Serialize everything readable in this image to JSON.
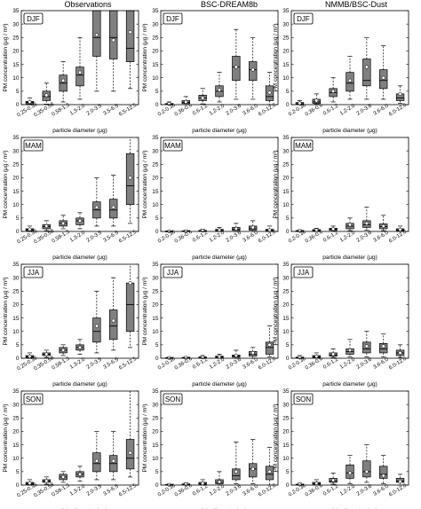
{
  "column_titles": [
    "Observations",
    "BSC-DREAM8b",
    "NMMB/BSC-Dust"
  ],
  "row_seasons": [
    "DJF",
    "MAM",
    "JJA",
    "SON"
  ],
  "xlabel": "particle diameter (μg)",
  "ylabel": "PM concentration (μg / m³)",
  "colors": {
    "box_fill": "#808080",
    "box_stroke": "#000000",
    "whisker": "#000000",
    "mean_marker": "#ffffff"
  },
  "chart_data": [
    {
      "type": "box",
      "title": "Observations",
      "season": "DJF",
      "ylim": [
        0,
        35
      ],
      "yticks": [
        0,
        5,
        10,
        15,
        20,
        25,
        30,
        35
      ],
      "categories": [
        "0.25-0.35",
        "0.35-0.58",
        "0.58-1.3",
        "1.3-2.0",
        "2.0-3.5",
        "3.5-6.5",
        "6.5-12.5"
      ],
      "boxes": [
        [
          0,
          0.3,
          0.8,
          1.2,
          2.5
        ],
        [
          0.2,
          1.5,
          3,
          5,
          8
        ],
        [
          1,
          5,
          8,
          11,
          16
        ],
        [
          2,
          7,
          11,
          14,
          25
        ],
        [
          5,
          18,
          25,
          38,
          60
        ],
        [
          5,
          17,
          25,
          40,
          60
        ],
        [
          6,
          16,
          21,
          41,
          61
        ]
      ],
      "means": [
        1,
        3.5,
        9,
        12,
        26,
        24,
        27
      ]
    },
    {
      "type": "box",
      "title": "BSC-DREAM8b",
      "season": "DJF",
      "ylim": [
        0,
        35
      ],
      "yticks": [
        0,
        5,
        10,
        15,
        20,
        25,
        30,
        35
      ],
      "categories": [
        "0.2-0.36",
        "0.36-0.6",
        "0.6-1.2",
        "1.2-2.0",
        "2.0-3.6",
        "3.6-6.0",
        "6.0-12.0"
      ],
      "boxes": [
        [
          0,
          0.1,
          0.2,
          0.4,
          1
        ],
        [
          0,
          0.4,
          0.8,
          1.5,
          3
        ],
        [
          0.3,
          1.5,
          2.5,
          3.5,
          6
        ],
        [
          1,
          3,
          5,
          7,
          12
        ],
        [
          2,
          9,
          14,
          18,
          28
        ],
        [
          2,
          9,
          13,
          16,
          25
        ],
        [
          0,
          1.5,
          3,
          7,
          12
        ]
      ],
      "means": [
        0.3,
        1,
        2.5,
        5.5,
        14,
        13,
        4.5
      ]
    },
    {
      "type": "box",
      "title": "NMMB/BSC-Dust",
      "season": "DJF",
      "ylim": [
        0,
        35
      ],
      "yticks": [
        0,
        5,
        10,
        15,
        20,
        25,
        30,
        35
      ],
      "categories": [
        "0.2-0.36",
        "0.36-0.6",
        "0.6-1.2",
        "1.2-2.0",
        "2.0-3.6",
        "3.6-6.0",
        "6.0-12.0"
      ],
      "boxes": [
        [
          0,
          0.1,
          0.3,
          0.8,
          1.5
        ],
        [
          0.2,
          0.5,
          1,
          2,
          4
        ],
        [
          1,
          3,
          4.5,
          6,
          10
        ],
        [
          2,
          5,
          8,
          12,
          18
        ],
        [
          2,
          7,
          9,
          17,
          25
        ],
        [
          2,
          6,
          9,
          13,
          22
        ],
        [
          0.5,
          1.5,
          2.5,
          4,
          7
        ]
      ],
      "means": [
        0.5,
        1.5,
        5,
        9,
        14,
        10,
        4
      ]
    },
    {
      "type": "box",
      "title": "Observations",
      "season": "MAM",
      "ylim": [
        0,
        35
      ],
      "yticks": [
        0,
        5,
        10,
        15,
        20,
        25,
        30,
        35
      ],
      "categories": [
        "0.25-0.35",
        "0.35-0.58",
        "0.58-1.3",
        "1.3-2.0",
        "2.0-3.5",
        "3.5-6.5",
        "6.5-12.5"
      ],
      "boxes": [
        [
          0,
          0.3,
          0.7,
          1,
          2
        ],
        [
          0.3,
          1,
          1.8,
          2.5,
          4
        ],
        [
          1,
          2,
          3,
          4,
          6
        ],
        [
          1,
          2.5,
          4,
          5,
          7
        ],
        [
          2,
          5,
          8,
          11,
          20
        ],
        [
          2,
          5,
          8,
          12,
          21
        ],
        [
          3,
          10,
          17,
          29,
          68
        ]
      ],
      "means": [
        0.8,
        2,
        3,
        4,
        9,
        9,
        20
      ]
    },
    {
      "type": "box",
      "title": "BSC-DREAM8b",
      "season": "MAM",
      "ylim": [
        0,
        35
      ],
      "yticks": [
        0,
        5,
        10,
        15,
        20,
        25,
        30,
        35
      ],
      "categories": [
        "0.2-0.36",
        "0.36-0.6",
        "0.6-1.2",
        "1.2-2.0",
        "2.0-3.6",
        "3.6-6.0",
        "6.0-12.0"
      ],
      "boxes": [
        [
          0,
          0,
          0.1,
          0.1,
          0.2
        ],
        [
          0,
          0,
          0.1,
          0.2,
          0.4
        ],
        [
          0,
          0.1,
          0.2,
          0.4,
          0.8
        ],
        [
          0,
          0.2,
          0.4,
          0.8,
          1.5
        ],
        [
          0,
          0.4,
          0.8,
          1.5,
          3
        ],
        [
          0,
          0.5,
          1,
          2,
          4
        ],
        [
          0,
          0.2,
          0.4,
          0.8,
          2
        ]
      ],
      "means": [
        0.1,
        0.1,
        0.3,
        0.5,
        1,
        1.5,
        0.5
      ]
    },
    {
      "type": "box",
      "title": "NMMB/BSC-Dust",
      "season": "MAM",
      "ylim": [
        0,
        35
      ],
      "yticks": [
        0,
        5,
        10,
        15,
        20,
        25,
        30,
        35
      ],
      "categories": [
        "0.2-0.36",
        "0.36-0.6",
        "0.6-1.2",
        "1.2-2.0",
        "2.0-3.6",
        "3.6-6.0",
        "6.0-12.0"
      ],
      "boxes": [
        [
          0,
          0.1,
          0.2,
          0.3,
          0.6
        ],
        [
          0,
          0.2,
          0.4,
          0.7,
          1.2
        ],
        [
          0.1,
          0.4,
          0.8,
          1.2,
          2
        ],
        [
          0.3,
          1,
          2,
          3,
          5
        ],
        [
          0.5,
          1.5,
          2.5,
          4,
          9
        ],
        [
          0.3,
          1,
          1.8,
          2.8,
          6
        ],
        [
          0.1,
          0.3,
          0.6,
          1,
          2
        ]
      ],
      "means": [
        0.2,
        0.5,
        0.9,
        2.5,
        3,
        2,
        0.7
      ]
    },
    {
      "type": "box",
      "title": "Observations",
      "season": "JJA",
      "ylim": [
        0,
        35
      ],
      "yticks": [
        0,
        5,
        10,
        15,
        20,
        25,
        30,
        35
      ],
      "categories": [
        "0.25-0.35",
        "0.35-0.58",
        "0.58-1.3",
        "1.3-2.0",
        "2.0-3.5",
        "3.5-6.5",
        "6.5-12.5"
      ],
      "boxes": [
        [
          0,
          0.3,
          0.6,
          1,
          2
        ],
        [
          0.3,
          1,
          1.5,
          2,
          3
        ],
        [
          1,
          2,
          3,
          4,
          5
        ],
        [
          1.5,
          3,
          4,
          5,
          7
        ],
        [
          2,
          6,
          10,
          15,
          25
        ],
        [
          3,
          7,
          12,
          18,
          30
        ],
        [
          4,
          10,
          20,
          28,
          68
        ]
      ],
      "means": [
        0.7,
        1.5,
        3,
        4,
        12,
        14,
        28
      ]
    },
    {
      "type": "box",
      "title": "BSC-DREAM8b",
      "season": "JJA",
      "ylim": [
        0,
        35
      ],
      "yticks": [
        0,
        5,
        10,
        15,
        20,
        25,
        30,
        35
      ],
      "categories": [
        "0.2-0.36",
        "0.36-0.6",
        "0.6-1.2",
        "1.2-2.0",
        "2.0-3.6",
        "3.6-6.0",
        "6.0-12.0"
      ],
      "boxes": [
        [
          0,
          0,
          0.1,
          0.2,
          0.4
        ],
        [
          0,
          0.1,
          0.2,
          0.3,
          0.5
        ],
        [
          0,
          0.2,
          0.3,
          0.5,
          1
        ],
        [
          0,
          0.3,
          0.5,
          0.8,
          1.5
        ],
        [
          0,
          0.4,
          0.8,
          1.2,
          3
        ],
        [
          0,
          0.8,
          1.5,
          2.5,
          4
        ],
        [
          0.5,
          1.5,
          4,
          6,
          12
        ]
      ],
      "means": [
        0.1,
        0.2,
        0.3,
        0.5,
        1,
        2,
        5
      ]
    },
    {
      "type": "box",
      "title": "NMMB/BSC-Dust",
      "season": "JJA",
      "ylim": [
        0,
        35
      ],
      "yticks": [
        0,
        5,
        10,
        15,
        20,
        25,
        30,
        35
      ],
      "categories": [
        "0.2-0.36",
        "0.36-0.6",
        "0.6-1.2",
        "1.2-2.0",
        "2.0-3.6",
        "3.6-6.0",
        "6.0-12.0"
      ],
      "boxes": [
        [
          0,
          0.1,
          0.2,
          0.4,
          1
        ],
        [
          0.1,
          0.3,
          0.6,
          1,
          2
        ],
        [
          0.3,
          0.8,
          1.2,
          2,
          3.5
        ],
        [
          0.5,
          1.5,
          2.5,
          3.5,
          7
        ],
        [
          0.5,
          2,
          3.5,
          6,
          10
        ],
        [
          0.5,
          2,
          3.5,
          5.5,
          9
        ],
        [
          0.3,
          1,
          2,
          3,
          5
        ]
      ],
      "means": [
        0.3,
        0.7,
        1.5,
        3,
        4.5,
        4.5,
        2
      ]
    },
    {
      "type": "box",
      "title": "Observations",
      "season": "SON",
      "ylim": [
        0,
        35
      ],
      "yticks": [
        0,
        5,
        10,
        15,
        20,
        25,
        30,
        35
      ],
      "categories": [
        "0.25-0.35",
        "0.35-0.58",
        "0.58-1.3",
        "1.3-2.0",
        "2.0-3.5",
        "3.5-6.5",
        "6.5-12.5"
      ],
      "boxes": [
        [
          0,
          0.3,
          0.6,
          1,
          2
        ],
        [
          0.3,
          1,
          1.5,
          2,
          3
        ],
        [
          1,
          2,
          3,
          4,
          5
        ],
        [
          1.5,
          3,
          4,
          5,
          7
        ],
        [
          2,
          5,
          8,
          12,
          20
        ],
        [
          2,
          5,
          8,
          11,
          20
        ],
        [
          3,
          6,
          10,
          17,
          38
        ]
      ],
      "means": [
        0.7,
        1.5,
        3,
        4,
        9,
        9,
        12
      ]
    },
    {
      "type": "box",
      "title": "BSC-DREAM8b",
      "season": "SON",
      "ylim": [
        0,
        35
      ],
      "yticks": [
        0,
        5,
        10,
        15,
        20,
        25,
        30,
        35
      ],
      "categories": [
        "0.2-0.36",
        "0.36-0.6",
        "0.6-1.2",
        "1.2-2.0",
        "2.0-3.6",
        "3.6-6.0",
        "6.0-12.0"
      ],
      "boxes": [
        [
          0,
          0.05,
          0.1,
          0.2,
          0.4
        ],
        [
          0,
          0.1,
          0.2,
          0.4,
          0.8
        ],
        [
          0,
          0.3,
          0.6,
          1,
          2
        ],
        [
          0,
          0.5,
          1,
          2,
          5
        ],
        [
          0.5,
          2,
          3.5,
          6,
          16
        ],
        [
          0.5,
          3,
          6,
          8,
          17
        ],
        [
          0,
          2,
          4,
          7,
          14
        ]
      ],
      "means": [
        0.1,
        0.3,
        0.6,
        1.2,
        5,
        6,
        5
      ]
    },
    {
      "type": "box",
      "title": "NMMB/BSC-Dust",
      "season": "SON",
      "ylim": [
        0,
        35
      ],
      "yticks": [
        0,
        5,
        10,
        15,
        20,
        25,
        30,
        35
      ],
      "categories": [
        "0.2-0.36",
        "0.36-0.6",
        "0.6-1.2",
        "1.2-2.0",
        "2.0-3.6",
        "3.6-6.0",
        "6.0-12.0"
      ],
      "boxes": [
        [
          0,
          0.1,
          0.2,
          0.3,
          0.7
        ],
        [
          0,
          0.3,
          0.6,
          1,
          2
        ],
        [
          0.3,
          1,
          1.5,
          2.5,
          4.5
        ],
        [
          0.5,
          2.5,
          4.5,
          7.5,
          11
        ],
        [
          1,
          3,
          5,
          9,
          15
        ],
        [
          0.5,
          2.5,
          4,
          7,
          11
        ],
        [
          0,
          1,
          1.5,
          2.5,
          4
        ]
      ],
      "means": [
        0.2,
        0.6,
        1.8,
        4.5,
        5,
        3.5,
        1.3
      ]
    }
  ]
}
